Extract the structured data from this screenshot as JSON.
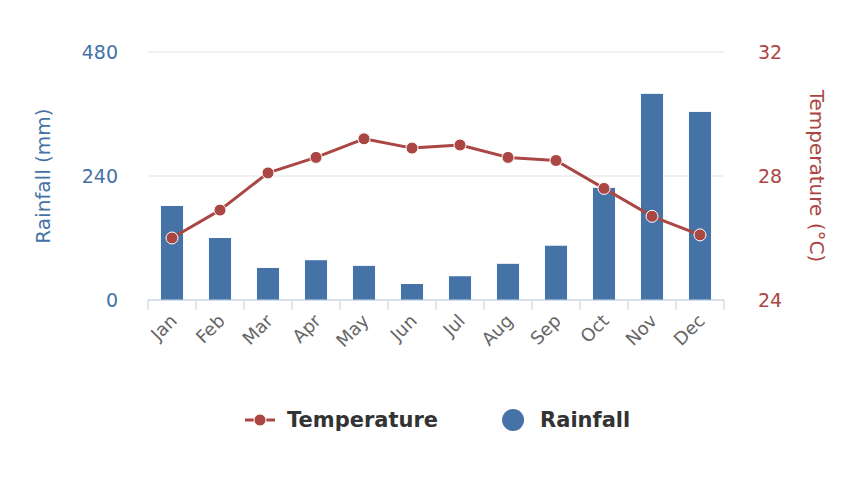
{
  "chart_data": {
    "type": "bar",
    "categories": [
      "Jan",
      "Feb",
      "Mar",
      "Apr",
      "May",
      "Jun",
      "Jul",
      "Aug",
      "Sep",
      "Oct",
      "Nov",
      "Dec"
    ],
    "series": [
      {
        "name": "Temperature",
        "type": "line",
        "axis": "y2",
        "color": "#aa4643",
        "marker": "circle",
        "values": [
          26.0,
          26.9,
          28.1,
          28.6,
          29.2,
          28.9,
          29.0,
          28.6,
          28.5,
          27.6,
          26.7,
          26.1
        ]
      },
      {
        "name": "Rainfall",
        "type": "bar",
        "color": "#4572a7",
        "marker": "circle",
        "values": [
          182,
          120,
          62,
          77,
          66,
          31,
          46,
          70,
          105,
          217,
          399,
          364
        ]
      }
    ],
    "ylabel": "Rainfall (mm)",
    "y2label": "Temperature (°C)",
    "ylim": [
      0,
      480
    ],
    "yticks": [
      0,
      240,
      480
    ],
    "y2lim": [
      24,
      32
    ],
    "y2ticks": [
      24,
      28,
      32
    ],
    "grid": true,
    "legend": "bottom"
  }
}
